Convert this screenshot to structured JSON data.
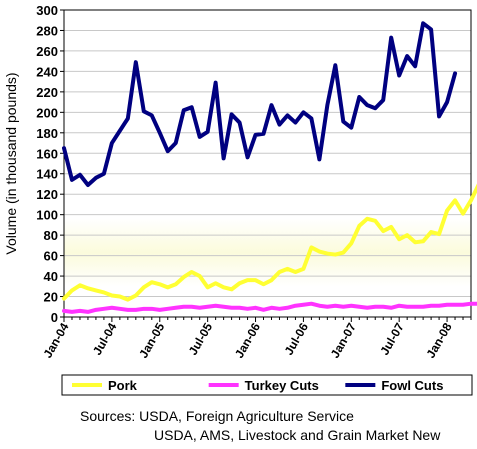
{
  "chart_data": {
    "type": "line",
    "ylabel": "Volume (in thousand pounds)",
    "ylim": [
      0,
      300
    ],
    "yticks": [
      0,
      20,
      40,
      60,
      80,
      100,
      120,
      140,
      160,
      180,
      200,
      220,
      240,
      260,
      280,
      300
    ],
    "x_tick_labels": [
      "Jan-04",
      "Jul-04",
      "Jan-05",
      "Jul-05",
      "Jan-06",
      "Jul-06",
      "Jan-07",
      "Jul-07",
      "Jan-08"
    ],
    "x_range_months": [
      0,
      51
    ],
    "legend_position": "bottom",
    "series": [
      {
        "name": "Pork",
        "color": "#ffff33",
        "values": [
          18,
          26,
          31,
          28,
          26,
          24,
          21,
          20,
          17,
          21,
          29,
          34,
          32,
          29,
          32,
          39,
          44,
          40,
          29,
          33,
          29,
          27,
          33,
          36,
          36,
          32,
          36,
          44,
          47,
          44,
          47,
          68,
          64,
          62,
          61,
          63,
          72,
          89,
          96,
          94,
          84,
          88,
          76,
          80,
          73,
          74,
          83,
          81,
          104,
          114,
          101,
          114,
          130
        ]
      },
      {
        "name": "Turkey Cuts",
        "color": "#ff33ff",
        "values": [
          6,
          5,
          6,
          5,
          7,
          8,
          9,
          8,
          7,
          7,
          8,
          8,
          7,
          8,
          9,
          10,
          10,
          9,
          10,
          11,
          10,
          9,
          9,
          8,
          9,
          7,
          9,
          8,
          9,
          11,
          12,
          13,
          11,
          10,
          11,
          10,
          11,
          10,
          9,
          10,
          10,
          9,
          11,
          10,
          10,
          10,
          11,
          11,
          12,
          12,
          12,
          13,
          13
        ]
      },
      {
        "name": "Fowl Cuts",
        "color": "#000080",
        "values": [
          165,
          134,
          139,
          129,
          136,
          140,
          170,
          182,
          194,
          249,
          201,
          197,
          180,
          162,
          170,
          202,
          205,
          176,
          181,
          229,
          155,
          198,
          190,
          156,
          178,
          179,
          207,
          188,
          197,
          190,
          200,
          194,
          154,
          207,
          246,
          191,
          185,
          215,
          207,
          204,
          212,
          273,
          236,
          255,
          245,
          287,
          281,
          196,
          210,
          238
        ]
      }
    ]
  },
  "sources": {
    "line1": "Sources:  USDA, Foreign Agriculture Service",
    "line2": "USDA, AMS, Livestock and Grain Market New"
  }
}
